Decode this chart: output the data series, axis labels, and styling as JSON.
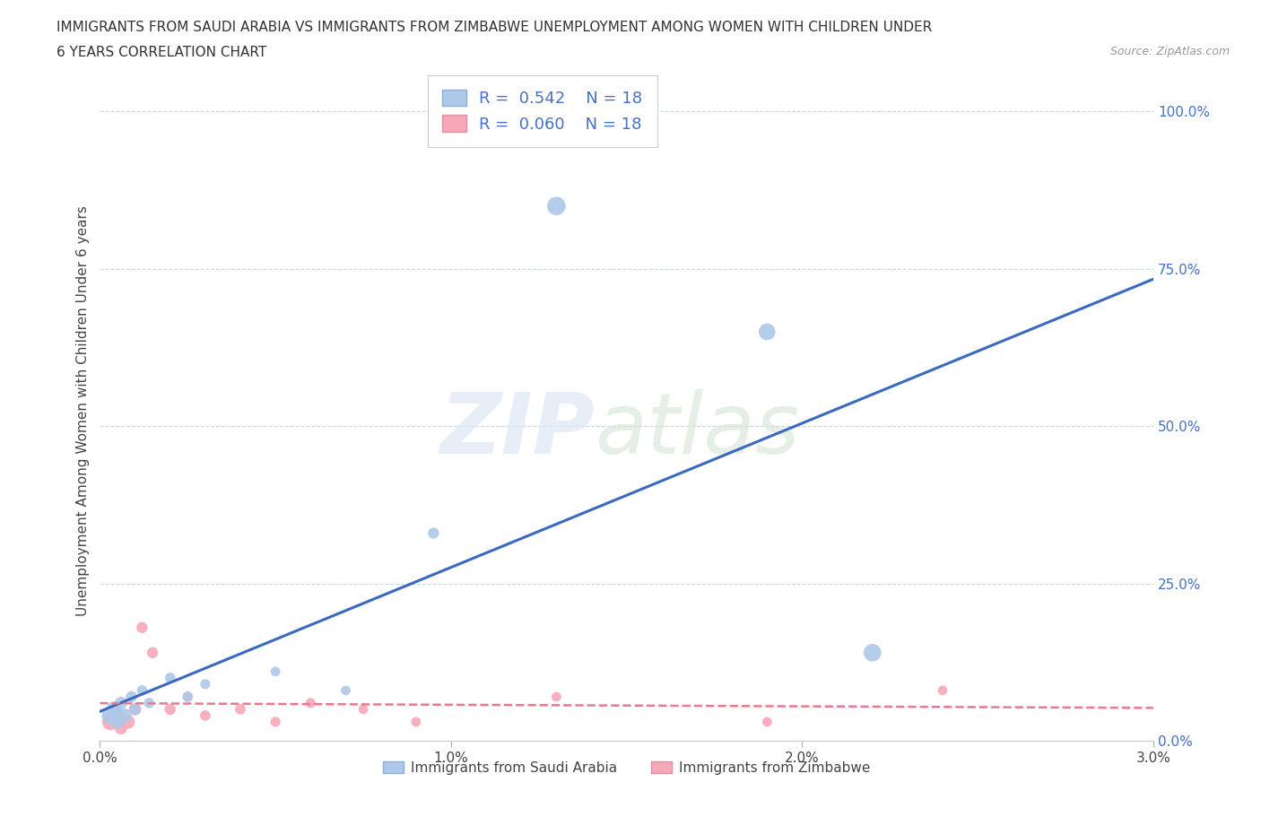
{
  "title_line1": "IMMIGRANTS FROM SAUDI ARABIA VS IMMIGRANTS FROM ZIMBABWE UNEMPLOYMENT AMONG WOMEN WITH CHILDREN UNDER",
  "title_line2": "6 YEARS CORRELATION CHART",
  "source": "Source: ZipAtlas.com",
  "ylabel": "Unemployment Among Women with Children Under 6 years",
  "xlim": [
    0.0,
    0.03
  ],
  "ylim": [
    0.0,
    1.05
  ],
  "xtick_labels": [
    "0.0%",
    "1.0%",
    "2.0%",
    "3.0%"
  ],
  "xtick_values": [
    0.0,
    0.01,
    0.02,
    0.03
  ],
  "ytick_labels": [
    "0.0%",
    "25.0%",
    "50.0%",
    "75.0%",
    "100.0%"
  ],
  "ytick_values": [
    0.0,
    0.25,
    0.5,
    0.75,
    1.0
  ],
  "saudi_R": 0.542,
  "saudi_N": 18,
  "zimb_R": 0.06,
  "zimb_N": 18,
  "saudi_color": "#adc8e8",
  "zimb_color": "#f5a8b8",
  "trend_saudi_color": "#3a6abf",
  "trend_zimb_color": "#e87a90",
  "background_color": "#ffffff",
  "grid_color": "#c8d4e8",
  "legend_label_saudi": "Immigrants from Saudi Arabia",
  "legend_label_zimb": "Immigrants from Zimbabwe",
  "saudi_x": [
    0.0003,
    0.0004,
    0.0005,
    0.0006,
    0.0007,
    0.0009,
    0.001,
    0.0012,
    0.0014,
    0.002,
    0.0025,
    0.003,
    0.005,
    0.007,
    0.0095,
    0.013,
    0.019,
    0.022
  ],
  "saudi_y": [
    0.04,
    0.05,
    0.03,
    0.06,
    0.04,
    0.07,
    0.05,
    0.08,
    0.06,
    0.1,
    0.07,
    0.09,
    0.11,
    0.08,
    0.33,
    0.85,
    0.65,
    0.14
  ],
  "saudi_size": [
    200,
    150,
    120,
    100,
    130,
    80,
    80,
    70,
    70,
    70,
    65,
    65,
    60,
    60,
    80,
    220,
    180,
    200
  ],
  "zimb_x": [
    0.0003,
    0.0005,
    0.0006,
    0.0008,
    0.001,
    0.0012,
    0.0015,
    0.002,
    0.0025,
    0.003,
    0.004,
    0.005,
    0.006,
    0.0075,
    0.009,
    0.013,
    0.019,
    0.024
  ],
  "zimb_y": [
    0.03,
    0.04,
    0.02,
    0.03,
    0.05,
    0.18,
    0.14,
    0.05,
    0.07,
    0.04,
    0.05,
    0.03,
    0.06,
    0.05,
    0.03,
    0.07,
    0.03,
    0.08
  ],
  "zimb_size": [
    180,
    130,
    100,
    120,
    100,
    80,
    80,
    80,
    70,
    70,
    70,
    65,
    65,
    60,
    60,
    60,
    60,
    60
  ]
}
